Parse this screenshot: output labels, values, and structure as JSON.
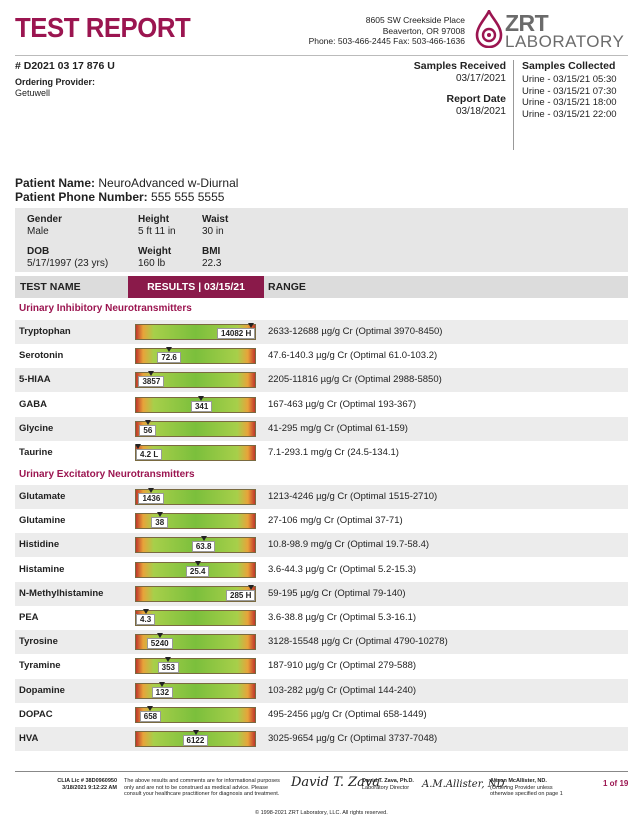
{
  "header": {
    "title": "TEST REPORT",
    "lab_address_line1": "8605 SW Creekside Place",
    "lab_address_line2": "Beaverton, OR 97008",
    "lab_phone": "Phone: 503-466-2445 Fax: 503-466-1636",
    "logo_text_top": "ZRT",
    "logo_text_bottom": "LABORATORY",
    "brand_color": "#9b1550"
  },
  "order": {
    "accession": "# D2021 03 17 876 U",
    "ordering_provider_label": "Ordering Provider:",
    "ordering_provider": "Getuwell",
    "samples_received_label": "Samples Received",
    "samples_received": "03/17/2021",
    "report_date_label": "Report Date",
    "report_date": "03/18/2021",
    "samples_collected_label": "Samples Collected",
    "samples_collected": [
      "Urine - 03/15/21 05:30",
      "Urine - 03/15/21 07:30",
      "Urine - 03/15/21 18:00",
      "Urine - 03/15/21 22:00"
    ]
  },
  "patient": {
    "name_label": "Patient Name:",
    "name": "NeuroAdvanced w-Diurnal",
    "phone_label": "Patient Phone Number:",
    "phone": "555 555 5555",
    "gender_label": "Gender",
    "gender": "Male",
    "height_label": "Height",
    "height": "5 ft 11 in",
    "waist_label": "Waist",
    "waist": "30 in",
    "dob_label": "DOB",
    "dob": "5/17/1997 (23 yrs)",
    "weight_label": "Weight",
    "weight": "160 lb",
    "bmi_label": "BMI",
    "bmi": "22.3"
  },
  "results_header": {
    "name": "TEST NAME",
    "results": "RESULTS | 03/15/21",
    "range": "RANGE"
  },
  "sections": [
    {
      "title": "Urinary Inhibitory Neurotransmitters",
      "rows": [
        {
          "name": "Tryptophan",
          "value": "14082 H",
          "position": 0.97,
          "range": "2633-12688 µg/g Cr (Optimal 3970-8450)"
        },
        {
          "name": "Serotonin",
          "value": "72.6",
          "position": 0.28,
          "range": "47.6-140.3 µg/g Cr (Optimal 61.0-103.2)"
        },
        {
          "name": "5-HIAA",
          "value": "3857",
          "position": 0.13,
          "range": "2205-11816 µg/g Cr (Optimal 2988-5850)"
        },
        {
          "name": "GABA",
          "value": "341",
          "position": 0.55,
          "range": "167-463 µg/g Cr (Optimal 193-367)"
        },
        {
          "name": "Glycine",
          "value": "56",
          "position": 0.1,
          "range": "41-295 mg/g Cr (Optimal 61-159)"
        },
        {
          "name": "Taurine",
          "value": "4.2 L",
          "position": 0.02,
          "range": "7.1-293.1 mg/g Cr (24.5-134.1)"
        }
      ]
    },
    {
      "title": "Urinary Excitatory Neurotransmitters",
      "rows": [
        {
          "name": "Glutamate",
          "value": "1436",
          "position": 0.13,
          "range": "1213-4246 µg/g Cr (Optimal 1515-2710)"
        },
        {
          "name": "Glutamine",
          "value": "38",
          "position": 0.2,
          "range": "27-106 mg/g Cr (Optimal 37-71)"
        },
        {
          "name": "Histidine",
          "value": "63.8",
          "position": 0.57,
          "range": "10.8-98.9 mg/g Cr (Optimal 19.7-58.4)"
        },
        {
          "name": "Histamine",
          "value": "25.4",
          "position": 0.52,
          "range": "3.6-44.3 µg/g Cr (Optimal 5.2-15.3)"
        },
        {
          "name": "N-Methylhistamine",
          "value": "285 H",
          "position": 0.97,
          "range": "59-195 µg/g Cr (Optimal 79-140)"
        },
        {
          "name": "PEA",
          "value": "4.3",
          "position": 0.08,
          "range": "3.6-38.8 µg/g Cr (Optimal 5.3-16.1)"
        },
        {
          "name": "Tyrosine",
          "value": "5240",
          "position": 0.2,
          "range": "3128-15548 µg/g Cr (Optimal 4790-10278)"
        },
        {
          "name": "Tyramine",
          "value": "353",
          "position": 0.27,
          "range": "187-910 µg/g Cr (Optimal 279-588)"
        },
        {
          "name": "Dopamine",
          "value": "132",
          "position": 0.22,
          "range": "103-282 µg/g Cr (Optimal 144-240)"
        },
        {
          "name": "DOPAC",
          "value": "658",
          "position": 0.12,
          "range": "495-2456 µg/g Cr (Optimal 658-1449)"
        },
        {
          "name": "HVA",
          "value": "6122",
          "position": 0.5,
          "range": "3025-9654 µg/g Cr (Optimal 3737-7048)"
        }
      ]
    }
  ],
  "footer": {
    "clia": "CLIA Lic # 38D0960950",
    "printed": "3/18/2021 9:12:22 AM",
    "disclaimer": "The above results and comments are for informational purposes only and are not to be construed as medical advice. Please consult your healthcare practitioner for diagnosis and treatment.",
    "director_sig": "David T. Zava",
    "director_name": "David T. Zava, Ph.D.",
    "director_title": "Laboratory Director",
    "second_sig": "A.M.Allister, ND.",
    "second_name": "Alison McAllister, ND.",
    "second_note": "(Ordering Provider unless otherwise specified on page 1",
    "copyright": "© 1998-2021 ZRT Laboratory, LLC. All rights reserved.",
    "page": "1 of 19"
  }
}
